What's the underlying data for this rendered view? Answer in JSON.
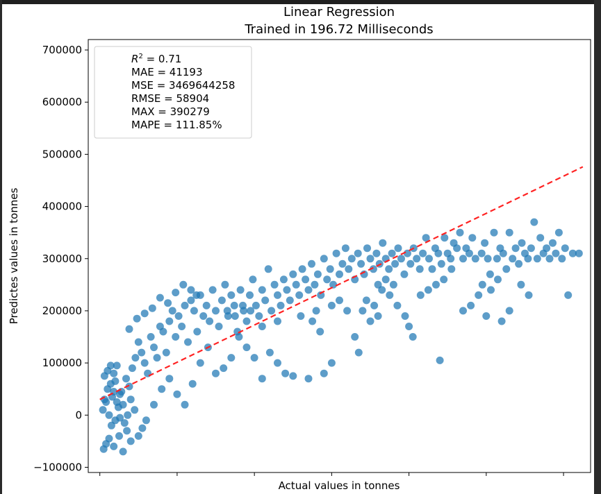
{
  "chart_data": {
    "type": "scatter",
    "title": "Linear Regression",
    "subtitle": "Trained in 196.72 Milliseconds",
    "xlabel": "Actual values in tonnes",
    "ylabel": "Predictes values in tonnes",
    "ylim": [
      -110000,
      720000
    ],
    "xlim": [
      -15000,
      635000
    ],
    "yticks": [
      -100000,
      0,
      100000,
      200000,
      300000,
      400000,
      500000,
      600000,
      700000
    ],
    "ytick_labels": [
      "−100000",
      "0",
      "100000",
      "200000",
      "300000",
      "400000",
      "500000",
      "600000",
      "700000"
    ],
    "xticks": [
      0,
      100000,
      200000,
      300000,
      400000,
      500000,
      600000
    ],
    "grid": false,
    "legend_position": "top-left",
    "metrics": {
      "r2_label": "R",
      "r2_sup": "2",
      "r2_value": " = 0.71",
      "mae": "MAE = 41193",
      "mse": "MSE = 3469644258",
      "rmse": "RMSE = 58904",
      "max": "MAX = 390279",
      "mape": "MAPE = 111.85%"
    },
    "fit_line": {
      "x": [
        0,
        625000
      ],
      "y": [
        30000,
        476000
      ],
      "color": "#ff2222"
    },
    "point_color": "#1f77b4",
    "points": [
      [
        5000,
        -65000
      ],
      [
        8000,
        -55000
      ],
      [
        12000,
        -45000
      ],
      [
        18000,
        -60000
      ],
      [
        25000,
        -40000
      ],
      [
        30000,
        -70000
      ],
      [
        35000,
        -30000
      ],
      [
        40000,
        -50000
      ],
      [
        15000,
        -20000
      ],
      [
        20000,
        -10000
      ],
      [
        4000,
        10000
      ],
      [
        6000,
        30000
      ],
      [
        10000,
        50000
      ],
      [
        14000,
        60000
      ],
      [
        18000,
        80000
      ],
      [
        22000,
        95000
      ],
      [
        26000,
        40000
      ],
      [
        30000,
        20000
      ],
      [
        34000,
        70000
      ],
      [
        38000,
        55000
      ],
      [
        42000,
        90000
      ],
      [
        46000,
        110000
      ],
      [
        50000,
        140000
      ],
      [
        54000,
        120000
      ],
      [
        58000,
        100000
      ],
      [
        62000,
        80000
      ],
      [
        66000,
        150000
      ],
      [
        70000,
        130000
      ],
      [
        74000,
        110000
      ],
      [
        78000,
        170000
      ],
      [
        82000,
        160000
      ],
      [
        86000,
        120000
      ],
      [
        90000,
        180000
      ],
      [
        94000,
        200000
      ],
      [
        98000,
        150000
      ],
      [
        102000,
        190000
      ],
      [
        106000,
        170000
      ],
      [
        110000,
        210000
      ],
      [
        114000,
        140000
      ],
      [
        118000,
        220000
      ],
      [
        122000,
        200000
      ],
      [
        126000,
        160000
      ],
      [
        130000,
        230000
      ],
      [
        134000,
        190000
      ],
      [
        138000,
        210000
      ],
      [
        142000,
        180000
      ],
      [
        146000,
        240000
      ],
      [
        150000,
        200000
      ],
      [
        154000,
        170000
      ],
      [
        158000,
        220000
      ],
      [
        162000,
        250000
      ],
      [
        166000,
        190000
      ],
      [
        170000,
        230000
      ],
      [
        174000,
        210000
      ],
      [
        178000,
        160000
      ],
      [
        182000,
        240000
      ],
      [
        186000,
        200000
      ],
      [
        190000,
        180000
      ],
      [
        194000,
        230000
      ],
      [
        198000,
        260000
      ],
      [
        202000,
        210000
      ],
      [
        206000,
        190000
      ],
      [
        210000,
        240000
      ],
      [
        214000,
        220000
      ],
      [
        218000,
        280000
      ],
      [
        222000,
        200000
      ],
      [
        226000,
        250000
      ],
      [
        230000,
        230000
      ],
      [
        234000,
        210000
      ],
      [
        238000,
        260000
      ],
      [
        242000,
        240000
      ],
      [
        246000,
        220000
      ],
      [
        250000,
        270000
      ],
      [
        254000,
        250000
      ],
      [
        258000,
        230000
      ],
      [
        262000,
        280000
      ],
      [
        266000,
        260000
      ],
      [
        270000,
        240000
      ],
      [
        274000,
        290000
      ],
      [
        278000,
        250000
      ],
      [
        282000,
        270000
      ],
      [
        286000,
        230000
      ],
      [
        290000,
        300000
      ],
      [
        294000,
        260000
      ],
      [
        298000,
        280000
      ],
      [
        302000,
        250000
      ],
      [
        306000,
        310000
      ],
      [
        310000,
        270000
      ],
      [
        314000,
        290000
      ],
      [
        318000,
        320000
      ],
      [
        322000,
        280000
      ],
      [
        326000,
        300000
      ],
      [
        330000,
        260000
      ],
      [
        334000,
        310000
      ],
      [
        338000,
        290000
      ],
      [
        342000,
        270000
      ],
      [
        346000,
        320000
      ],
      [
        350000,
        300000
      ],
      [
        354000,
        280000
      ],
      [
        358000,
        310000
      ],
      [
        362000,
        290000
      ],
      [
        366000,
        330000
      ],
      [
        370000,
        300000
      ],
      [
        374000,
        280000
      ],
      [
        378000,
        310000
      ],
      [
        382000,
        290000
      ],
      [
        386000,
        320000
      ],
      [
        390000,
        300000
      ],
      [
        394000,
        270000
      ],
      [
        398000,
        310000
      ],
      [
        402000,
        290000
      ],
      [
        406000,
        320000
      ],
      [
        410000,
        300000
      ],
      [
        414000,
        280000
      ],
      [
        418000,
        310000
      ],
      [
        422000,
        340000
      ],
      [
        426000,
        300000
      ],
      [
        430000,
        280000
      ],
      [
        434000,
        320000
      ],
      [
        438000,
        310000
      ],
      [
        442000,
        290000
      ],
      [
        446000,
        340000
      ],
      [
        450000,
        310000
      ],
      [
        454000,
        300000
      ],
      [
        458000,
        330000
      ],
      [
        462000,
        320000
      ],
      [
        466000,
        350000
      ],
      [
        470000,
        300000
      ],
      [
        474000,
        320000
      ],
      [
        478000,
        310000
      ],
      [
        482000,
        340000
      ],
      [
        486000,
        300000
      ],
      [
        490000,
        230000
      ],
      [
        494000,
        310000
      ],
      [
        498000,
        330000
      ],
      [
        502000,
        300000
      ],
      [
        506000,
        240000
      ],
      [
        510000,
        350000
      ],
      [
        514000,
        300000
      ],
      [
        518000,
        320000
      ],
      [
        522000,
        310000
      ],
      [
        526000,
        280000
      ],
      [
        530000,
        350000
      ],
      [
        534000,
        300000
      ],
      [
        538000,
        320000
      ],
      [
        542000,
        290000
      ],
      [
        546000,
        330000
      ],
      [
        550000,
        310000
      ],
      [
        554000,
        300000
      ],
      [
        558000,
        320000
      ],
      [
        562000,
        370000
      ],
      [
        566000,
        300000
      ],
      [
        570000,
        340000
      ],
      [
        574000,
        310000
      ],
      [
        578000,
        320000
      ],
      [
        582000,
        300000
      ],
      [
        586000,
        330000
      ],
      [
        590000,
        310000
      ],
      [
        594000,
        350000
      ],
      [
        598000,
        300000
      ],
      [
        602000,
        320000
      ],
      [
        606000,
        230000
      ],
      [
        612000,
        310000
      ],
      [
        620000,
        310000
      ],
      [
        440000,
        105000
      ],
      [
        400000,
        170000
      ],
      [
        405000,
        150000
      ],
      [
        330000,
        150000
      ],
      [
        335000,
        120000
      ],
      [
        300000,
        100000
      ],
      [
        290000,
        80000
      ],
      [
        270000,
        70000
      ],
      [
        250000,
        75000
      ],
      [
        240000,
        80000
      ],
      [
        230000,
        100000
      ],
      [
        220000,
        120000
      ],
      [
        210000,
        70000
      ],
      [
        200000,
        110000
      ],
      [
        190000,
        130000
      ],
      [
        180000,
        150000
      ],
      [
        170000,
        110000
      ],
      [
        160000,
        90000
      ],
      [
        150000,
        80000
      ],
      [
        140000,
        130000
      ],
      [
        130000,
        100000
      ],
      [
        120000,
        60000
      ],
      [
        110000,
        20000
      ],
      [
        100000,
        40000
      ],
      [
        90000,
        70000
      ],
      [
        80000,
        50000
      ],
      [
        70000,
        20000
      ],
      [
        60000,
        -10000
      ],
      [
        55000,
        -25000
      ],
      [
        50000,
        -40000
      ],
      [
        45000,
        10000
      ],
      [
        40000,
        30000
      ],
      [
        36000,
        0
      ],
      [
        32000,
        -15000
      ],
      [
        28000,
        45000
      ],
      [
        24000,
        15000
      ],
      [
        20000,
        65000
      ],
      [
        16000,
        35000
      ],
      [
        12000,
        0
      ],
      [
        8000,
        25000
      ],
      [
        6000,
        75000
      ],
      [
        10000,
        85000
      ],
      [
        14000,
        95000
      ],
      [
        18000,
        45000
      ],
      [
        22000,
        25000
      ],
      [
        26000,
        -5000
      ],
      [
        340000,
        200000
      ],
      [
        345000,
        220000
      ],
      [
        355000,
        210000
      ],
      [
        365000,
        240000
      ],
      [
        375000,
        230000
      ],
      [
        385000,
        210000
      ],
      [
        395000,
        190000
      ],
      [
        360000,
        190000
      ],
      [
        350000,
        180000
      ],
      [
        320000,
        200000
      ],
      [
        310000,
        220000
      ],
      [
        300000,
        210000
      ],
      [
        280000,
        200000
      ],
      [
        260000,
        190000
      ],
      [
        230000,
        180000
      ],
      [
        210000,
        170000
      ],
      [
        195000,
        200000
      ],
      [
        185000,
        210000
      ],
      [
        175000,
        190000
      ],
      [
        165000,
        200000
      ],
      [
        125000,
        230000
      ],
      [
        118000,
        240000
      ],
      [
        108000,
        250000
      ],
      [
        98000,
        235000
      ],
      [
        88000,
        215000
      ],
      [
        78000,
        225000
      ],
      [
        68000,
        205000
      ],
      [
        58000,
        195000
      ],
      [
        48000,
        185000
      ],
      [
        38000,
        165000
      ],
      [
        470000,
        200000
      ],
      [
        480000,
        210000
      ],
      [
        500000,
        190000
      ],
      [
        520000,
        180000
      ],
      [
        530000,
        200000
      ],
      [
        545000,
        250000
      ],
      [
        555000,
        230000
      ],
      [
        515000,
        260000
      ],
      [
        505000,
        270000
      ],
      [
        495000,
        250000
      ],
      [
        455000,
        280000
      ],
      [
        445000,
        260000
      ],
      [
        435000,
        250000
      ],
      [
        425000,
        240000
      ],
      [
        415000,
        230000
      ],
      [
        380000,
        250000
      ],
      [
        370000,
        260000
      ],
      [
        360000,
        250000
      ],
      [
        285000,
        160000
      ],
      [
        275000,
        180000
      ]
    ]
  }
}
